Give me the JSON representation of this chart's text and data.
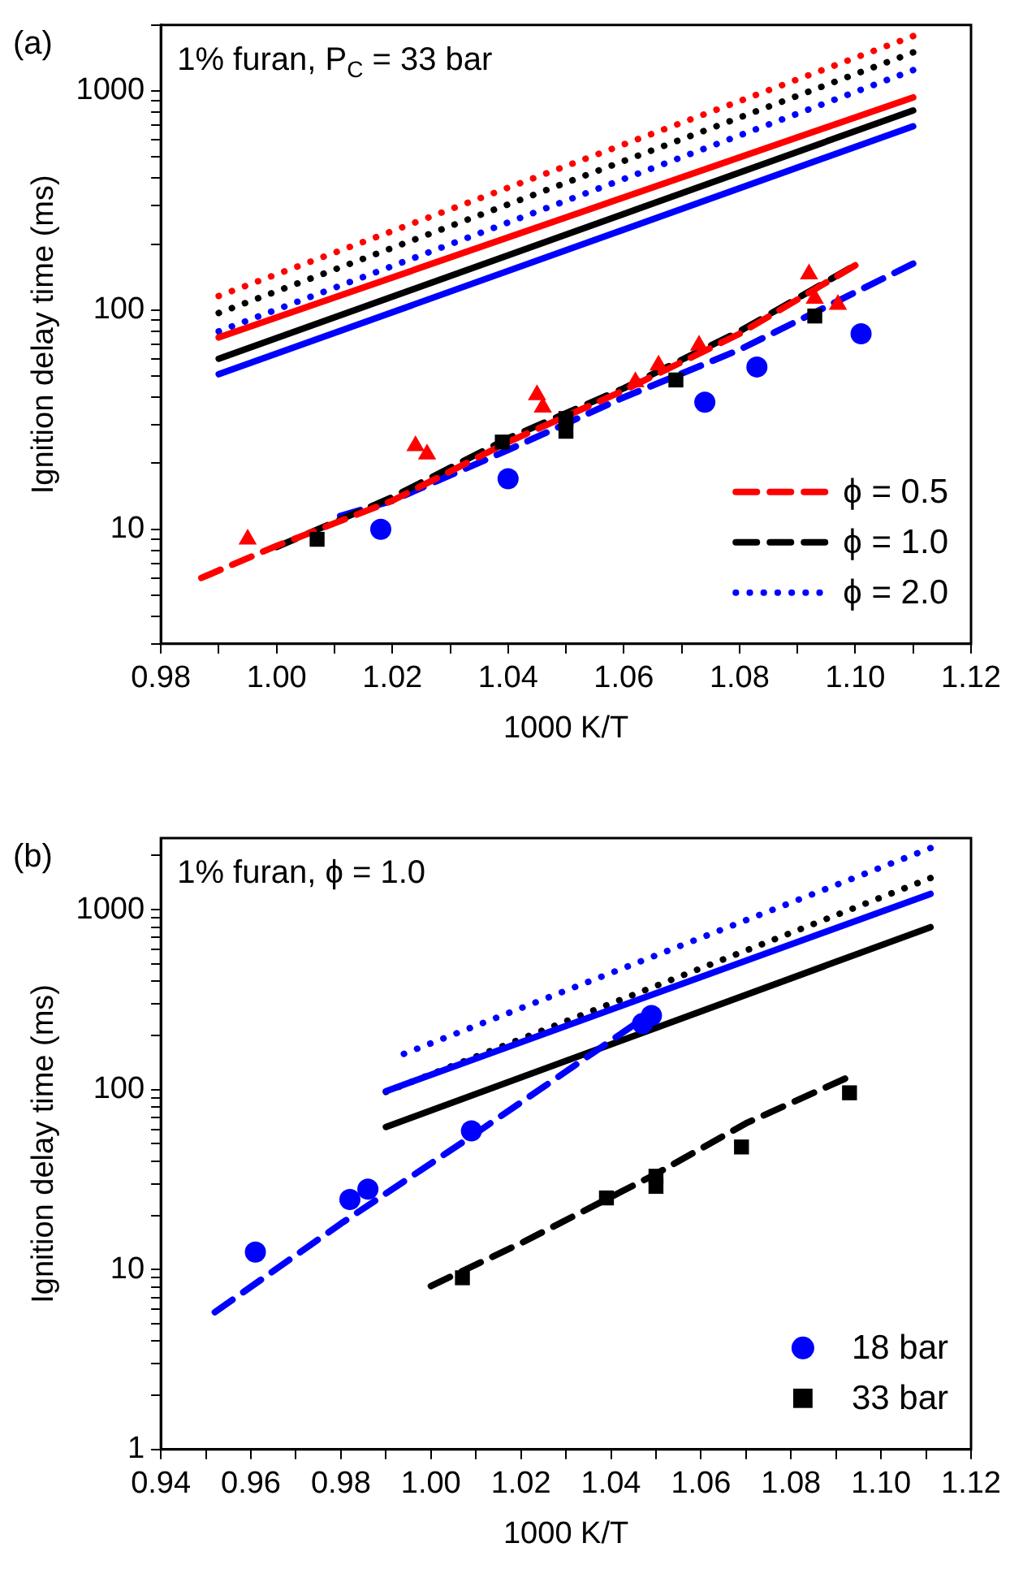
{
  "chart_data": [
    {
      "type": "line",
      "xlabel": "1000 K/T",
      "ylabel": "Ignition delay time (ms)",
      "log": "y",
      "annotations": [
        "(a)",
        "1% furan, P$_{C}$ = 33 bar"
      ],
      "xlim": [
        0.98,
        1.12
      ],
      "xticks": [
        0.98,
        {
          "value": 0.99,
          "label": null
        },
        {
          "value": 1.0,
          "label": "1.00"
        },
        {
          "value": 1.01,
          "label": null
        },
        1.02,
        {
          "value": 1.03,
          "label": null
        },
        1.04,
        {
          "value": 1.05,
          "label": null
        },
        1.06,
        {
          "value": 1.07,
          "label": null
        },
        1.08,
        {
          "value": 1.09,
          "label": null
        },
        {
          "value": 1.1,
          "label": "1.10"
        },
        {
          "value": 1.11,
          "label": null
        },
        1.12
      ],
      "ylim": [
        3,
        2000
      ],
      "yticks": [
        {
          "value": 3,
          "label": null
        },
        {
          "value": 4,
          "label": null
        },
        {
          "value": 5,
          "label": null
        },
        {
          "value": 6,
          "label": null
        },
        {
          "value": 7,
          "label": null
        },
        {
          "value": 8,
          "label": null
        },
        {
          "value": 9,
          "label": null
        },
        10,
        {
          "value": 20,
          "label": null
        },
        {
          "value": 30,
          "label": null
        },
        {
          "value": 40,
          "label": null
        },
        {
          "value": 50,
          "label": null
        },
        {
          "value": 60,
          "label": null
        },
        {
          "value": 70,
          "label": null
        },
        {
          "value": 80,
          "label": null
        },
        {
          "value": 90,
          "label": null
        },
        100,
        {
          "value": 200,
          "label": null
        },
        {
          "value": 300,
          "label": null
        },
        {
          "value": 400,
          "label": null
        },
        {
          "value": 500,
          "label": null
        },
        {
          "value": 600,
          "label": null
        },
        {
          "value": 700,
          "label": null
        },
        {
          "value": 800,
          "label": null
        },
        {
          "value": 900,
          "label": null
        },
        1000,
        {
          "value": 2000,
          "label": null
        }
      ],
      "legend": "bottom right",
      "series": [
        {
          "type": "scatter",
          "marker": "triangle",
          "color": "#ff0000",
          "x": [
            0.995,
            1.024,
            1.026,
            1.045,
            1.046,
            1.062,
            1.066,
            1.073,
            1.092,
            1.093,
            1.097
          ],
          "values": [
            9,
            24,
            22,
            41,
            36,
            47,
            56,
            69,
            146,
            113,
            106
          ]
        },
        {
          "type": "scatter",
          "marker": "square",
          "color": "#000000",
          "x": [
            1.007,
            1.039,
            1.05,
            1.05,
            1.069,
            1.093
          ],
          "values": [
            9,
            25,
            32,
            28,
            48,
            94
          ]
        },
        {
          "type": "scatter",
          "marker": "circle",
          "color": "#0000ff",
          "x": [
            1.018,
            1.04,
            1.074,
            1.083,
            1.101
          ],
          "values": [
            10,
            17,
            38,
            55,
            78
          ]
        },
        {
          "type": "line",
          "name": "ϕ = 0.5",
          "line_style": "dashed",
          "color": "#ff0000",
          "x": [
            0.987,
            1.0,
            1.02,
            1.04,
            1.06,
            1.08,
            1.1
          ],
          "values": [
            6,
            8.4,
            13.5,
            25,
            43,
            78,
            160
          ]
        },
        {
          "type": "line",
          "name": "ϕ = 1.0",
          "line_style": "dashed",
          "color": "#000000",
          "x": [
            1.0,
            1.02,
            1.04,
            1.06,
            1.08,
            1.099
          ],
          "values": [
            8.3,
            14,
            26,
            44,
            80,
            155
          ]
        },
        {
          "type": "line",
          "line_style": "dashed",
          "color": "#0000ff",
          "x": [
            1.011,
            1.02,
            1.04,
            1.06,
            1.08,
            1.11
          ],
          "values": [
            11.5,
            13.5,
            23,
            40,
            66,
            163
          ]
        },
        {
          "type": "line",
          "line_style": "solid",
          "color": "#ff0000",
          "x": [
            0.99,
            1.11
          ],
          "values": [
            75,
            935
          ]
        },
        {
          "type": "line",
          "line_style": "solid",
          "color": "#000000",
          "x": [
            0.99,
            1.11
          ],
          "values": [
            60,
            815
          ]
        },
        {
          "type": "line",
          "line_style": "solid",
          "color": "#0000ff",
          "x": [
            0.99,
            1.11
          ],
          "values": [
            51,
            690
          ]
        },
        {
          "type": "line",
          "line_style": "dotted",
          "color": "#ff0000",
          "x": [
            0.99,
            1.11
          ],
          "values": [
            116,
            1780
          ]
        },
        {
          "type": "line",
          "line_style": "dotted",
          "color": "#000000",
          "x": [
            0.99,
            1.11
          ],
          "values": [
            97,
            1500
          ]
        },
        {
          "type": "line",
          "name": "ϕ = 2.0",
          "line_style": "dotted",
          "color": "#0000ff",
          "x": [
            0.99,
            1.11
          ],
          "values": [
            80,
            1245
          ]
        }
      ]
    },
    {
      "type": "line",
      "xlabel": "1000 K/T",
      "ylabel": "Ignition delay time (ms)",
      "log": "y",
      "annotations": [
        "(b)",
        "1% furan, ϕ = 1.0"
      ],
      "xlim": [
        0.94,
        1.12
      ],
      "xticks": [
        0.94,
        {
          "value": 0.95,
          "label": null
        },
        0.96,
        {
          "value": 0.97,
          "label": null
        },
        0.98,
        {
          "value": 0.99,
          "label": null
        },
        {
          "value": 1.0,
          "label": "1.00"
        },
        {
          "value": 1.01,
          "label": null
        },
        1.02,
        {
          "value": 1.03,
          "label": null
        },
        1.04,
        {
          "value": 1.05,
          "label": null
        },
        1.06,
        {
          "value": 1.07,
          "label": null
        },
        1.08,
        {
          "value": 1.09,
          "label": null
        },
        {
          "value": 1.1,
          "label": "1.10"
        },
        {
          "value": 1.11,
          "label": null
        },
        1.12
      ],
      "ylim": [
        1,
        2500
      ],
      "yticks": [
        1,
        {
          "value": 2,
          "label": null
        },
        {
          "value": 3,
          "label": null
        },
        {
          "value": 4,
          "label": null
        },
        {
          "value": 5,
          "label": null
        },
        {
          "value": 6,
          "label": null
        },
        {
          "value": 7,
          "label": null
        },
        {
          "value": 8,
          "label": null
        },
        {
          "value": 9,
          "label": null
        },
        10,
        {
          "value": 20,
          "label": null
        },
        {
          "value": 30,
          "label": null
        },
        {
          "value": 40,
          "label": null
        },
        {
          "value": 50,
          "label": null
        },
        {
          "value": 60,
          "label": null
        },
        {
          "value": 70,
          "label": null
        },
        {
          "value": 80,
          "label": null
        },
        {
          "value": 90,
          "label": null
        },
        100,
        {
          "value": 200,
          "label": null
        },
        {
          "value": 300,
          "label": null
        },
        {
          "value": 400,
          "label": null
        },
        {
          "value": 500,
          "label": null
        },
        {
          "value": 600,
          "label": null
        },
        {
          "value": 700,
          "label": null
        },
        {
          "value": 800,
          "label": null
        },
        {
          "value": 900,
          "label": null
        },
        1000,
        {
          "value": 2000,
          "label": null
        }
      ],
      "legend": "bottom right",
      "series": [
        {
          "type": "scatter",
          "name": "18 bar",
          "marker": "circle",
          "color": "#0000ff",
          "x": [
            0.961,
            0.982,
            0.986,
            1.009,
            1.047,
            1.049
          ],
          "values": [
            12.5,
            24.5,
            28,
            59,
            233,
            258
          ]
        },
        {
          "type": "scatter",
          "name": "33 bar",
          "marker": "square",
          "color": "#000000",
          "x": [
            1.007,
            1.039,
            1.05,
            1.05,
            1.069,
            1.093
          ],
          "values": [
            9,
            25,
            33,
            29,
            48,
            96
          ]
        },
        {
          "type": "line",
          "line_style": "dashed",
          "color": "#0000ff",
          "x": [
            0.952,
            0.98,
            1.009,
            1.045
          ],
          "values": [
            5.8,
            18,
            55,
            228
          ]
        },
        {
          "type": "line",
          "line_style": "dashed",
          "color": "#000000",
          "x": [
            1.0,
            1.02,
            1.05,
            1.07,
            1.092
          ],
          "values": [
            8.1,
            14,
            34,
            65,
            115
          ]
        },
        {
          "type": "line",
          "line_style": "solid",
          "color": "#0000ff",
          "x": [
            0.99,
            1.111
          ],
          "values": [
            98,
            1225
          ]
        },
        {
          "type": "line",
          "line_style": "solid",
          "color": "#000000",
          "x": [
            0.99,
            1.111
          ],
          "values": [
            62,
            800
          ]
        },
        {
          "type": "line",
          "line_style": "dotted",
          "color": "#0000ff",
          "x": [
            0.994,
            1.111
          ],
          "values": [
            158,
            2200
          ]
        },
        {
          "type": "line",
          "line_style": "dotted",
          "color": "#000000",
          "x": [
            0.99,
            1.111
          ],
          "values": [
            97,
            1500
          ]
        }
      ]
    }
  ]
}
